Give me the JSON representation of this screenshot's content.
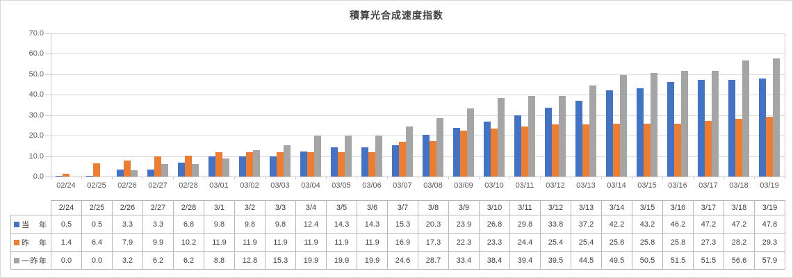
{
  "chart_data": {
    "type": "bar",
    "title": "積算光合成速度指数",
    "categories": [
      "02/24",
      "02/25",
      "02/26",
      "02/27",
      "02/28",
      "03/01",
      "03/02",
      "03/03",
      "03/04",
      "03/05",
      "03/06",
      "03/07",
      "03/08",
      "03/09",
      "03/10",
      "03/11",
      "03/12",
      "03/13",
      "03/14",
      "03/15",
      "03/16",
      "03/17",
      "03/18",
      "03/19"
    ],
    "series": [
      {
        "name": "当 年",
        "color": "#4472C4",
        "values": [
          0.5,
          0.5,
          3.3,
          3.3,
          6.8,
          9.8,
          9.8,
          9.8,
          12.4,
          14.3,
          14.3,
          15.3,
          20.3,
          23.9,
          26.8,
          29.8,
          33.8,
          37.2,
          42.2,
          43.2,
          46.2,
          47.2,
          47.2,
          47.8
        ]
      },
      {
        "name": "昨 年",
        "color": "#ED7D31",
        "values": [
          1.4,
          6.4,
          7.9,
          9.9,
          10.2,
          11.9,
          11.9,
          11.9,
          11.9,
          11.9,
          11.9,
          16.9,
          17.3,
          22.3,
          23.3,
          24.4,
          25.4,
          25.4,
          25.8,
          25.8,
          25.8,
          27.3,
          28.2,
          29.3
        ]
      },
      {
        "name": "一昨年",
        "color": "#A5A5A5",
        "values": [
          0.0,
          0.0,
          3.2,
          6.2,
          6.2,
          8.8,
          12.8,
          15.3,
          19.9,
          19.9,
          19.9,
          24.6,
          28.7,
          33.4,
          38.4,
          39.4,
          39.5,
          44.5,
          49.5,
          50.5,
          51.5,
          51.5,
          56.6,
          57.9
        ]
      }
    ],
    "ylim": [
      0,
      70
    ],
    "ytick_step": 10,
    "ytick_labels": [
      "0.0",
      "10.0",
      "20.0",
      "30.0",
      "40.0",
      "50.0",
      "60.0",
      "70.0"
    ],
    "grid": true,
    "legend_position": "data-table-keys",
    "data_table": {
      "col_headers": [
        "2/24",
        "2/25",
        "2/26",
        "2/27",
        "2/28",
        "3/1",
        "3/2",
        "3/3",
        "3/4",
        "3/5",
        "3/6",
        "3/7",
        "3/8",
        "3/9",
        "3/10",
        "3/11",
        "3/12",
        "3/13",
        "3/14",
        "3/15",
        "3/16",
        "3/17",
        "3/18",
        "3/19"
      ]
    }
  },
  "colors": {
    "background": "#FFFFFF",
    "chart_border": "#D6D6D6",
    "gridline": "#D9D9D9",
    "axis_line": "#C9C9C9",
    "tick_label": "#595959",
    "title_text": "#404040",
    "table_border": "#B7B7B7",
    "table_text": "#404040"
  }
}
